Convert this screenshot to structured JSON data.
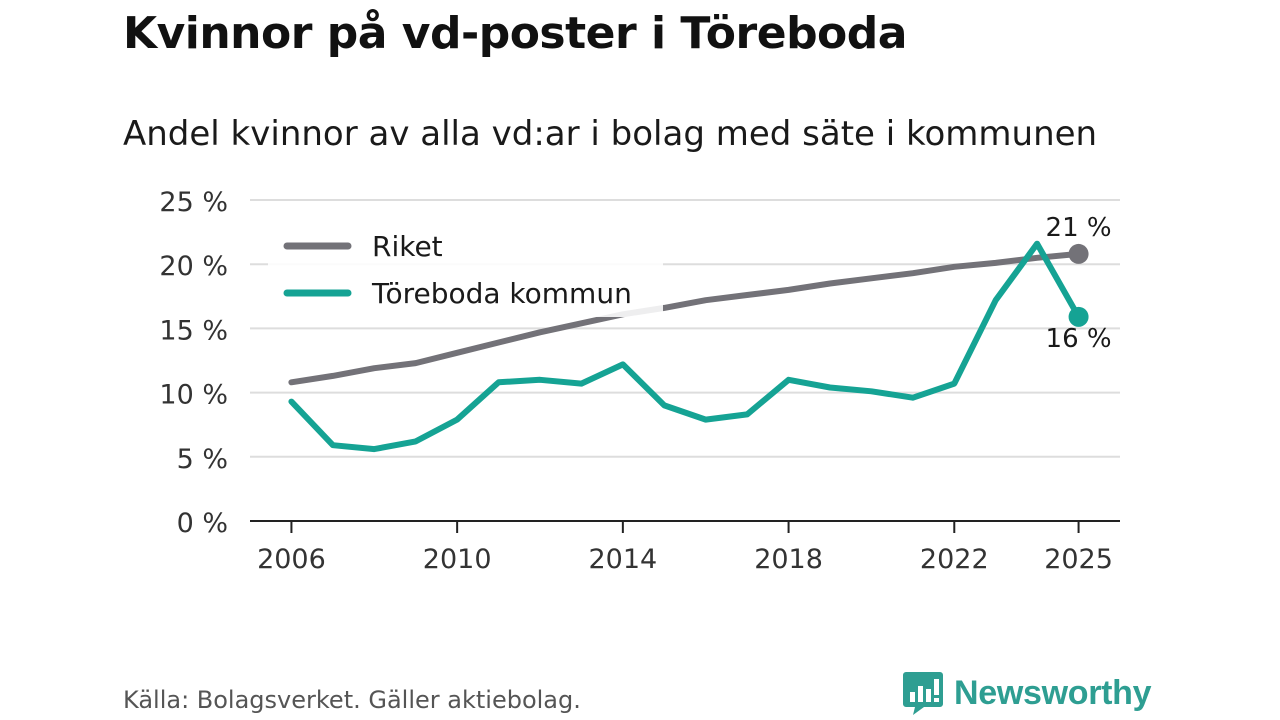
{
  "header": {
    "title": "Kvinnor på vd-poster i Töreboda",
    "subtitle": "Andel kvinnor av alla vd:ar i bolag med säte i kommunen"
  },
  "footer": {
    "source": "Källa: Bolagsverket. Gäller aktiebolag.",
    "brand": "Newsworthy"
  },
  "colors": {
    "riket": "#737278",
    "toreboda": "#15a394",
    "grid": "#dddddd",
    "axis": "#222222"
  },
  "chart_data": {
    "type": "line",
    "title": "Kvinnor på vd-poster i Töreboda",
    "subtitle": "Andel kvinnor av alla vd:ar i bolag med säte i kommunen",
    "xlabel": "",
    "ylabel": "",
    "x": [
      2006,
      2007,
      2008,
      2009,
      2010,
      2011,
      2012,
      2013,
      2014,
      2015,
      2016,
      2017,
      2018,
      2019,
      2020,
      2021,
      2022,
      2023,
      2024,
      2025
    ],
    "xticks": [
      2006,
      2010,
      2014,
      2018,
      2022,
      2025
    ],
    "xtick_labels": [
      "2006",
      "2010",
      "2014",
      "2018",
      "2022",
      "2025"
    ],
    "ylim": [
      0,
      25
    ],
    "yticks": [
      0,
      5,
      10,
      15,
      20,
      25
    ],
    "ytick_labels": [
      "0 %",
      "5 %",
      "10 %",
      "15 %",
      "20 %",
      "25 %"
    ],
    "grid": true,
    "legend_position": "top-left",
    "series": [
      {
        "name": "Riket",
        "color": "#737278",
        "values": [
          10.8,
          11.3,
          11.9,
          12.3,
          13.1,
          13.9,
          14.7,
          15.4,
          16.1,
          16.6,
          17.2,
          17.6,
          18.0,
          18.5,
          18.9,
          19.3,
          19.8,
          20.1,
          20.5,
          20.8
        ],
        "end_label": "21 %"
      },
      {
        "name": "Töreboda kommun",
        "color": "#15a394",
        "values": [
          9.3,
          5.9,
          5.6,
          6.2,
          7.9,
          10.8,
          11.0,
          10.7,
          12.2,
          9.0,
          7.9,
          8.3,
          11.0,
          10.4,
          10.1,
          9.6,
          10.7,
          17.2,
          21.6,
          15.9
        ],
        "end_label": "16 %"
      }
    ]
  }
}
